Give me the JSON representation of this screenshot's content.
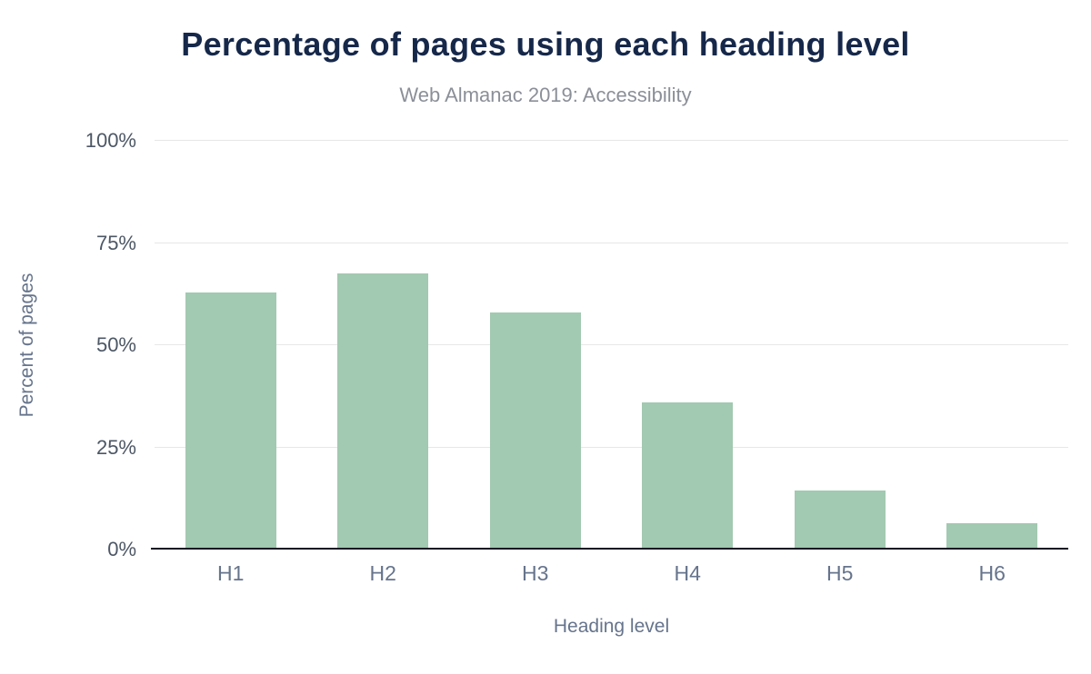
{
  "chart_data": {
    "type": "bar",
    "title": "Percentage of pages using each heading level",
    "subtitle": "Web Almanac 2019: Accessibility",
    "categories": [
      "H1",
      "H2",
      "H3",
      "H4",
      "H5",
      "H6"
    ],
    "values": [
      63,
      67.5,
      58,
      36,
      14.5,
      6.5
    ],
    "xlabel": "Heading level",
    "ylabel": "Percent of pages",
    "ylim": [
      0,
      100
    ],
    "yticks": [
      "0%",
      "25%",
      "50%",
      "75%",
      "100%"
    ],
    "grid": true,
    "legend_position": "none",
    "bar_color": "#a2c9b1",
    "title_color": "#16284a",
    "subtitle_color": "#8b8f98",
    "axis_label_color": "#66748c"
  }
}
